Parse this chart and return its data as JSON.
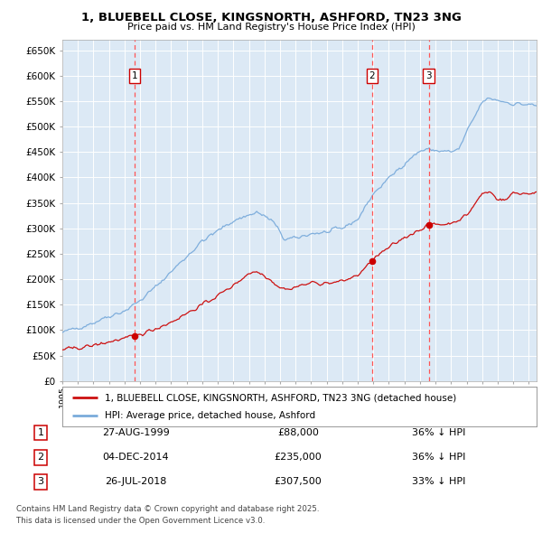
{
  "title": "1, BLUEBELL CLOSE, KINGSNORTH, ASHFORD, TN23 3NG",
  "subtitle": "Price paid vs. HM Land Registry's House Price Index (HPI)",
  "background_color": "#ffffff",
  "plot_bg_color": "#dce9f5",
  "grid_color": "#ffffff",
  "ylim": [
    0,
    670000
  ],
  "yticks": [
    0,
    50000,
    100000,
    150000,
    200000,
    250000,
    300000,
    350000,
    400000,
    450000,
    500000,
    550000,
    600000,
    650000
  ],
  "xlim_start": 1995.3,
  "xlim_end": 2025.5,
  "sale_dates": [
    1999.65,
    2014.92,
    2018.57
  ],
  "sale_prices": [
    88000,
    235000,
    307500
  ],
  "sale_labels": [
    "1",
    "2",
    "3"
  ],
  "vline_color": "#ff5555",
  "marker_color": "#cc0000",
  "hpi_color": "#7aabdb",
  "price_color": "#cc1111",
  "legend_label_price": "1, BLUEBELL CLOSE, KINGSNORTH, ASHFORD, TN23 3NG (detached house)",
  "legend_label_hpi": "HPI: Average price, detached house, Ashford",
  "footer_line1": "Contains HM Land Registry data © Crown copyright and database right 2025.",
  "footer_line2": "This data is licensed under the Open Government Licence v3.0.",
  "table_data": [
    [
      "1",
      "27-AUG-1999",
      "£88,000",
      "36% ↓ HPI"
    ],
    [
      "2",
      "04-DEC-2014",
      "£235,000",
      "36% ↓ HPI"
    ],
    [
      "3",
      "26-JUL-2018",
      "£307,500",
      "33% ↓ HPI"
    ]
  ]
}
